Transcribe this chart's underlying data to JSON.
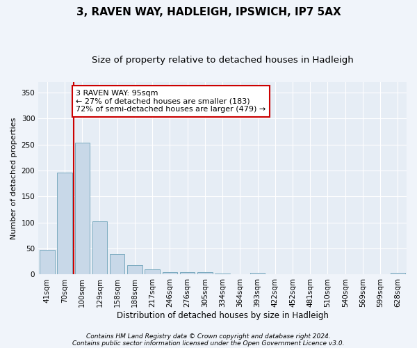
{
  "title1": "3, RAVEN WAY, HADLEIGH, IPSWICH, IP7 5AX",
  "title2": "Size of property relative to detached houses in Hadleigh",
  "xlabel": "Distribution of detached houses by size in Hadleigh",
  "ylabel": "Number of detached properties",
  "categories": [
    "41sqm",
    "70sqm",
    "100sqm",
    "129sqm",
    "158sqm",
    "188sqm",
    "217sqm",
    "246sqm",
    "276sqm",
    "305sqm",
    "334sqm",
    "364sqm",
    "393sqm",
    "422sqm",
    "452sqm",
    "481sqm",
    "510sqm",
    "540sqm",
    "569sqm",
    "599sqm",
    "628sqm"
  ],
  "values": [
    48,
    196,
    253,
    102,
    40,
    18,
    10,
    4,
    5,
    5,
    2,
    0,
    3,
    0,
    0,
    0,
    0,
    0,
    0,
    0,
    3
  ],
  "bar_color": "#c8d8e8",
  "bar_edge_color": "#7aaabf",
  "highlight_color": "#cc0000",
  "highlight_line_index": 2,
  "annotation_text": "3 RAVEN WAY: 95sqm\n← 27% of detached houses are smaller (183)\n72% of semi-detached houses are larger (479) →",
  "annotation_box_color": "white",
  "annotation_box_edge_color": "#cc0000",
  "ylim": [
    0,
    370
  ],
  "yticks": [
    0,
    50,
    100,
    150,
    200,
    250,
    300,
    350
  ],
  "footer1": "Contains HM Land Registry data © Crown copyright and database right 2024.",
  "footer2": "Contains public sector information licensed under the Open Government Licence v3.0.",
  "background_color": "#f0f4fa",
  "axes_background_color": "#e6edf5",
  "grid_color": "white",
  "title1_fontsize": 11,
  "title2_fontsize": 9.5,
  "xlabel_fontsize": 8.5,
  "ylabel_fontsize": 8,
  "tick_fontsize": 7.5,
  "annotation_fontsize": 8,
  "footer_fontsize": 6.5
}
